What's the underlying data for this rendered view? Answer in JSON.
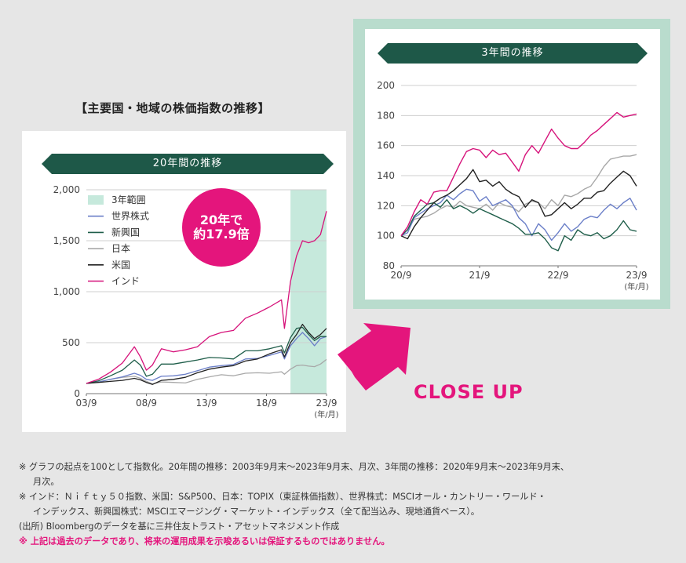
{
  "main_title": "【主要国・地域の株価指数の推移】",
  "closeup_label": "CLOSE UP",
  "badge": {
    "line1": "20年で",
    "line2": "約17.9倍"
  },
  "colors": {
    "world": "#6b7fc8",
    "emerging": "#1f5e4a",
    "japan": "#a8a8a8",
    "us": "#222222",
    "india": "#d6127a",
    "range": "#c6e9dc",
    "banner": "#1e5848",
    "accent": "#e4157c"
  },
  "chart_data": [
    {
      "type": "line",
      "title": "20年間の推移",
      "x_ticks": [
        "03/9",
        "08/9",
        "13/9",
        "18/9",
        "23/9"
      ],
      "x_unit": "(年/月)",
      "y_ticks": [
        "0",
        "500",
        "1,000",
        "1,500",
        "2,000"
      ],
      "ylim": [
        0,
        2000
      ],
      "xlim": [
        2003.75,
        2023.75
      ],
      "highlight_range": {
        "label": "3年範囲",
        "from": 2020.75,
        "to": 2023.75
      },
      "legend": [
        "3年範囲",
        "世界株式",
        "新興国",
        "日本",
        "米国",
        "インド"
      ],
      "x": [
        2003.75,
        2004.75,
        2005.75,
        2006.75,
        2007.75,
        2008.25,
        2008.75,
        2009.25,
        2010.0,
        2011.0,
        2012.0,
        2013.0,
        2014.0,
        2015.0,
        2016.0,
        2017.0,
        2018.0,
        2019.0,
        2020.0,
        2020.25,
        2020.75,
        2021.25,
        2021.75,
        2022.25,
        2022.75,
        2023.25,
        2023.75
      ],
      "series": [
        {
          "name": "世界株式",
          "key": "world",
          "values": [
            100,
            115,
            140,
            165,
            200,
            180,
            140,
            130,
            170,
            175,
            190,
            225,
            260,
            275,
            285,
            340,
            345,
            375,
            410,
            340,
            470,
            540,
            600,
            540,
            470,
            540,
            560
          ]
        },
        {
          "name": "新興国",
          "key": "emerging",
          "values": [
            100,
            125,
            175,
            230,
            330,
            280,
            170,
            190,
            290,
            290,
            310,
            330,
            355,
            350,
            340,
            420,
            420,
            440,
            470,
            400,
            550,
            640,
            650,
            580,
            520,
            560,
            560
          ]
        },
        {
          "name": "日本",
          "key": "japan",
          "values": [
            100,
            112,
            140,
            160,
            170,
            150,
            120,
            95,
            115,
            110,
            105,
            140,
            165,
            185,
            175,
            200,
            205,
            200,
            215,
            190,
            240,
            275,
            280,
            270,
            265,
            290,
            335
          ]
        },
        {
          "name": "米国",
          "key": "us",
          "values": [
            100,
            110,
            120,
            130,
            150,
            135,
            110,
            90,
            130,
            140,
            160,
            205,
            240,
            260,
            275,
            320,
            340,
            390,
            430,
            360,
            500,
            580,
            680,
            600,
            540,
            580,
            640
          ]
        },
        {
          "name": "インド",
          "key": "india",
          "values": [
            100,
            140,
            210,
            300,
            460,
            360,
            230,
            280,
            440,
            410,
            430,
            460,
            560,
            600,
            620,
            740,
            790,
            850,
            920,
            640,
            1100,
            1350,
            1500,
            1480,
            1500,
            1560,
            1790
          ]
        }
      ]
    },
    {
      "type": "line",
      "title": "3年間の推移",
      "x_ticks": [
        "20/9",
        "21/9",
        "22/9",
        "23/9"
      ],
      "x_unit": "(年/月)",
      "y_ticks": [
        "80",
        "100",
        "120",
        "140",
        "160",
        "180",
        "200"
      ],
      "ylim": [
        80,
        200
      ],
      "xlim": [
        0,
        36
      ],
      "x": [
        0,
        1,
        2,
        3,
        4,
        5,
        6,
        7,
        8,
        9,
        10,
        11,
        12,
        13,
        14,
        15,
        16,
        17,
        18,
        19,
        20,
        21,
        22,
        23,
        24,
        25,
        26,
        27,
        28,
        29,
        30,
        31,
        32,
        33,
        34,
        35,
        36
      ],
      "series": [
        {
          "name": "世界株式",
          "key": "world",
          "values": [
            100,
            102,
            112,
            115,
            118,
            120,
            122,
            127,
            124,
            128,
            131,
            130,
            123,
            126,
            120,
            122,
            124,
            120,
            112,
            108,
            100,
            108,
            104,
            97,
            102,
            108,
            103,
            106,
            111,
            113,
            112,
            117,
            121,
            118,
            122,
            125,
            117
          ]
        },
        {
          "name": "新興国",
          "key": "emerging",
          "values": [
            100,
            104,
            113,
            117,
            121,
            122,
            119,
            124,
            118,
            120,
            118,
            115,
            118,
            116,
            114,
            112,
            110,
            108,
            105,
            101,
            101,
            102,
            98,
            92,
            90,
            100,
            97,
            104,
            101,
            100,
            102,
            98,
            100,
            104,
            110,
            104,
            103
          ]
        },
        {
          "name": "日本",
          "key": "japan",
          "values": [
            100,
            104,
            111,
            112,
            113,
            115,
            118,
            120,
            119,
            123,
            120,
            119,
            118,
            121,
            117,
            122,
            120,
            119,
            116,
            121,
            123,
            122,
            118,
            124,
            120,
            127,
            126,
            128,
            131,
            133,
            139,
            146,
            151,
            152,
            153,
            153,
            154
          ]
        },
        {
          "name": "米国",
          "key": "us",
          "values": [
            100,
            98,
            106,
            112,
            117,
            122,
            125,
            127,
            130,
            134,
            138,
            144,
            136,
            137,
            133,
            136,
            131,
            128,
            126,
            119,
            124,
            122,
            113,
            114,
            118,
            122,
            118,
            121,
            125,
            125,
            129,
            130,
            135,
            139,
            143,
            140,
            133
          ]
        },
        {
          "name": "インド",
          "key": "india",
          "values": [
            100,
            106,
            116,
            124,
            121,
            129,
            130,
            130,
            139,
            148,
            156,
            158,
            157,
            152,
            157,
            154,
            155,
            149,
            143,
            154,
            160,
            155,
            163,
            171,
            165,
            160,
            158,
            158,
            162,
            167,
            170,
            174,
            178,
            182,
            179,
            180,
            181
          ]
        }
      ]
    }
  ],
  "notes": [
    "※ グラフの起点を100として指数化。20年間の推移：2003年9月末～2023年9月末、月次、3年間の推移：2020年9月末～2023年9月末、",
    "月次。",
    "※ インド：Ｎｉｆｔｙ５０指数、米国：S&P500、日本：TOPIX（東証株価指数）、世界株式：MSCIオール・カントリー・ワールド・",
    "インデックス、新興国株式：MSCIエマージング・マーケット・インデックス（全て配当込み、現地通貨ベース）。",
    "(出所) Bloombergのデータを基に三井住友トラスト・アセットマネジメント作成",
    "※ 上記は過去のデータであり、将来の運用成果を示唆あるいは保証するものではありません。"
  ]
}
